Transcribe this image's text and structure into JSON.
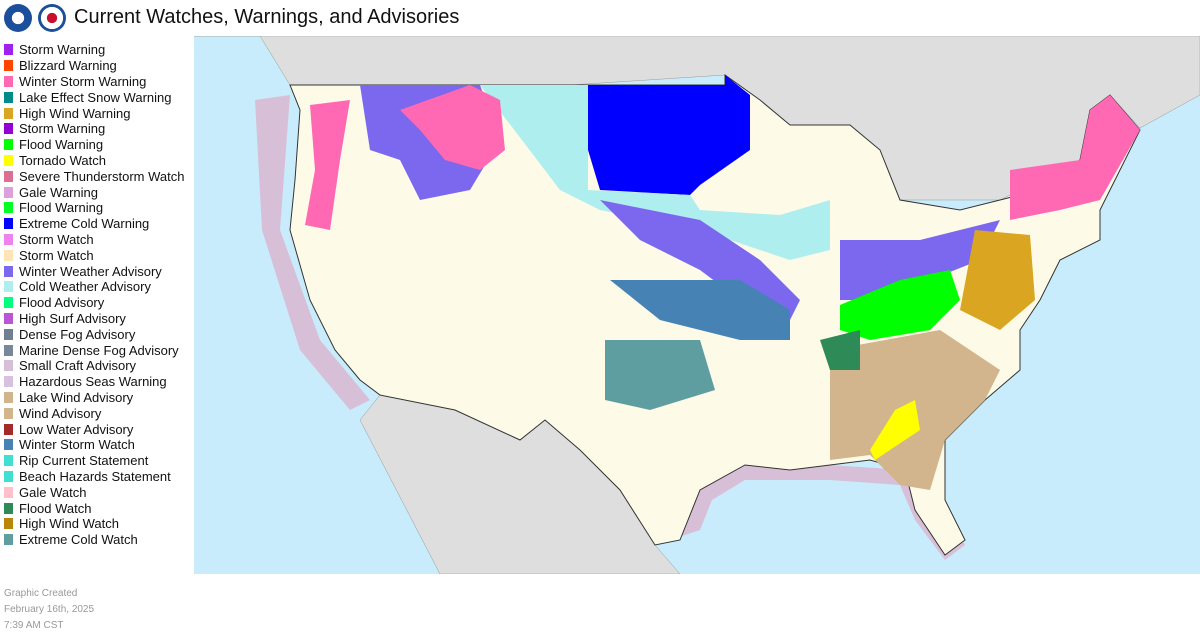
{
  "header": {
    "title": "Current Watches, Warnings, and Advisories"
  },
  "legend": [
    {
      "name": "Storm Warning",
      "color": "#a020f0"
    },
    {
      "name": "Blizzard Warning",
      "color": "#ff4500"
    },
    {
      "name": "Winter Storm Warning",
      "color": "#ff69b4"
    },
    {
      "name": "Lake Effect Snow Warning",
      "color": "#008b8b"
    },
    {
      "name": "High Wind Warning",
      "color": "#daa520"
    },
    {
      "name": "Storm Warning",
      "color": "#9400d3"
    },
    {
      "name": "Flood Warning",
      "color": "#00ff00"
    },
    {
      "name": "Tornado Watch",
      "color": "#ffff00"
    },
    {
      "name": "Severe Thunderstorm Watch",
      "color": "#db7093"
    },
    {
      "name": "Gale Warning",
      "color": "#dda0dd"
    },
    {
      "name": "Flood Warning",
      "color": "#00ff22"
    },
    {
      "name": "Extreme Cold Warning",
      "color": "#0000ff"
    },
    {
      "name": "Storm Watch",
      "color": "#ee82ee"
    },
    {
      "name": "Storm Watch",
      "color": "#ffe4b5"
    },
    {
      "name": "Winter Weather Advisory",
      "color": "#7b68ee"
    },
    {
      "name": "Cold Weather Advisory",
      "color": "#afeeee"
    },
    {
      "name": "Flood Advisory",
      "color": "#00ff7f"
    },
    {
      "name": "High Surf Advisory",
      "color": "#ba55d3"
    },
    {
      "name": "Dense Fog Advisory",
      "color": "#708090"
    },
    {
      "name": "Marine Dense Fog Advisory",
      "color": "#778899"
    },
    {
      "name": "Small Craft Advisory",
      "color": "#d8bfd8"
    },
    {
      "name": "Hazardous Seas Warning",
      "color": "#d8c0e0"
    },
    {
      "name": "Lake Wind Advisory",
      "color": "#d2b48c"
    },
    {
      "name": "Wind Advisory",
      "color": "#d2b48d"
    },
    {
      "name": "Low Water Advisory",
      "color": "#a52a2a"
    },
    {
      "name": "Winter Storm Watch",
      "color": "#4682b4"
    },
    {
      "name": "Rip Current Statement",
      "color": "#40e0d0"
    },
    {
      "name": "Beach Hazards Statement",
      "color": "#40e0d1"
    },
    {
      "name": "Gale Watch",
      "color": "#ffc0cb"
    },
    {
      "name": "Flood Watch",
      "color": "#2e8b57"
    },
    {
      "name": "High Wind Watch",
      "color": "#b8860b"
    },
    {
      "name": "Extreme Cold Watch",
      "color": "#5f9ea0"
    }
  ],
  "footer": [
    "Graphic Created",
    "February 16th, 2025",
    "7:39 AM CST"
  ]
}
